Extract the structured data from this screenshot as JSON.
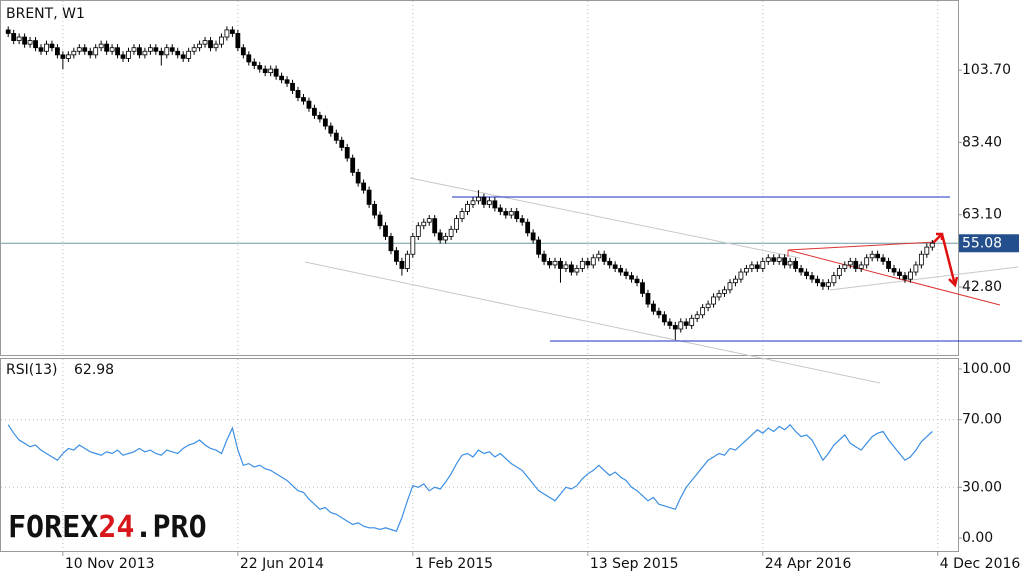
{
  "chart_data": [
    {
      "type": "candlestick",
      "title": "BRENT, W1",
      "values": [
        [
          115,
          116,
          113,
          114
        ],
        [
          114,
          115,
          111,
          112
        ],
        [
          112,
          114,
          111,
          113
        ],
        [
          113,
          114,
          110,
          111
        ],
        [
          111,
          113,
          110,
          112
        ],
        [
          112,
          113,
          109,
          110
        ],
        [
          110,
          111,
          108,
          109
        ],
        [
          109,
          112,
          108,
          111
        ],
        [
          111,
          112,
          109,
          110
        ],
        [
          110,
          111,
          107,
          108
        ],
        [
          108,
          109,
          104,
          107
        ],
        [
          107,
          109,
          106,
          108
        ],
        [
          108,
          110,
          107,
          109
        ],
        [
          109,
          111,
          108,
          110
        ],
        [
          110,
          111,
          108,
          109
        ],
        [
          109,
          110,
          107,
          108
        ],
        [
          108,
          111,
          107,
          110
        ],
        [
          110,
          112,
          109,
          111
        ],
        [
          111,
          112,
          108,
          109
        ],
        [
          109,
          111,
          108,
          110
        ],
        [
          110,
          111,
          107,
          108
        ],
        [
          108,
          109,
          106,
          107
        ],
        [
          107,
          110,
          106,
          109
        ],
        [
          109,
          111,
          108,
          110
        ],
        [
          110,
          111,
          107,
          108
        ],
        [
          108,
          110,
          107,
          109
        ],
        [
          109,
          111,
          108,
          110
        ],
        [
          110,
          111,
          108,
          109
        ],
        [
          109,
          110,
          105,
          108
        ],
        [
          108,
          111,
          107,
          110
        ],
        [
          110,
          111,
          108,
          109
        ],
        [
          109,
          110,
          107,
          108
        ],
        [
          108,
          109,
          106,
          107
        ],
        [
          107,
          110,
          106,
          109
        ],
        [
          109,
          111,
          108,
          110
        ],
        [
          110,
          112,
          109,
          111
        ],
        [
          111,
          113,
          110,
          112
        ],
        [
          112,
          113,
          109,
          110
        ],
        [
          110,
          112,
          109,
          111
        ],
        [
          111,
          114,
          110,
          113
        ],
        [
          113,
          116,
          112,
          115
        ],
        [
          115,
          116,
          113,
          114
        ],
        [
          114,
          115,
          109,
          110
        ],
        [
          110,
          111,
          107,
          108
        ],
        [
          108,
          109,
          105,
          106
        ],
        [
          106,
          107,
          104,
          105
        ],
        [
          105,
          106,
          103,
          104
        ],
        [
          104,
          105,
          102,
          103
        ],
        [
          103,
          105,
          102,
          104
        ],
        [
          104,
          105,
          101,
          102
        ],
        [
          102,
          103,
          100,
          101
        ],
        [
          101,
          102,
          99,
          100
        ],
        [
          100,
          101,
          97,
          98
        ],
        [
          98,
          99,
          95,
          96
        ],
        [
          96,
          97,
          94,
          95
        ],
        [
          95,
          96,
          92,
          93
        ],
        [
          93,
          94,
          90,
          91
        ],
        [
          91,
          92,
          89,
          90
        ],
        [
          90,
          91,
          87,
          88
        ],
        [
          88,
          89,
          85,
          86
        ],
        [
          86,
          87,
          83,
          84
        ],
        [
          84,
          85,
          81,
          82
        ],
        [
          82,
          83,
          78,
          79
        ],
        [
          79,
          80,
          74,
          75
        ],
        [
          75,
          76,
          71,
          72
        ],
        [
          72,
          73,
          69,
          70
        ],
        [
          70,
          71,
          65,
          66
        ],
        [
          66,
          67,
          62,
          63
        ],
        [
          63,
          64,
          59,
          60
        ],
        [
          60,
          61,
          56,
          57
        ],
        [
          57,
          58,
          52,
          53
        ],
        [
          53,
          54,
          49,
          50
        ],
        [
          50,
          51,
          46,
          48
        ],
        [
          48,
          53,
          47,
          52
        ],
        [
          52,
          58,
          51,
          57
        ],
        [
          57,
          61,
          56,
          60
        ],
        [
          60,
          62,
          59,
          61
        ],
        [
          61,
          63,
          60,
          62
        ],
        [
          62,
          63,
          57,
          58
        ],
        [
          58,
          59,
          55,
          56
        ],
        [
          56,
          58,
          55,
          57
        ],
        [
          57,
          60,
          56,
          59
        ],
        [
          59,
          63,
          58,
          62
        ],
        [
          62,
          65,
          61,
          64
        ],
        [
          64,
          67,
          63,
          66
        ],
        [
          66,
          68,
          65,
          67
        ],
        [
          67,
          70,
          66,
          68
        ],
        [
          68,
          69,
          65,
          66
        ],
        [
          66,
          68,
          65,
          67
        ],
        [
          67,
          68,
          64,
          65
        ],
        [
          65,
          66,
          63,
          64
        ],
        [
          64,
          65,
          62,
          63
        ],
        [
          63,
          65,
          62,
          64
        ],
        [
          64,
          65,
          61,
          62
        ],
        [
          62,
          63,
          60,
          61
        ],
        [
          61,
          62,
          57,
          58
        ],
        [
          58,
          59,
          55,
          56
        ],
        [
          56,
          57,
          51,
          52
        ],
        [
          52,
          53,
          49,
          50
        ],
        [
          50,
          51,
          48,
          49
        ],
        [
          49,
          51,
          48,
          50
        ],
        [
          50,
          51,
          44,
          48
        ],
        [
          48,
          50,
          47,
          49
        ],
        [
          49,
          50,
          46,
          47
        ],
        [
          47,
          49,
          46,
          48
        ],
        [
          48,
          51,
          47,
          50
        ],
        [
          50,
          51,
          48,
          49
        ],
        [
          49,
          52,
          48,
          51
        ],
        [
          51,
          53,
          50,
          52
        ],
        [
          52,
          53,
          49,
          50
        ],
        [
          50,
          51,
          48,
          49
        ],
        [
          49,
          50,
          47,
          48
        ],
        [
          48,
          49,
          46,
          47
        ],
        [
          47,
          48,
          45,
          46
        ],
        [
          46,
          47,
          44,
          45
        ],
        [
          45,
          46,
          43,
          44
        ],
        [
          44,
          45,
          40,
          41
        ],
        [
          41,
          42,
          37,
          38
        ],
        [
          38,
          39,
          35,
          36
        ],
        [
          36,
          37,
          34,
          35
        ],
        [
          35,
          36,
          32,
          33
        ],
        [
          33,
          34,
          31,
          32
        ],
        [
          32,
          33,
          28,
          31
        ],
        [
          31,
          34,
          30,
          33
        ],
        [
          33,
          34,
          31,
          32
        ],
        [
          32,
          35,
          31,
          34
        ],
        [
          34,
          36,
          33,
          35
        ],
        [
          35,
          38,
          34,
          37
        ],
        [
          37,
          39,
          36,
          38
        ],
        [
          38,
          41,
          37,
          40
        ],
        [
          40,
          42,
          39,
          41
        ],
        [
          41,
          43,
          40,
          42
        ],
        [
          42,
          45,
          41,
          44
        ],
        [
          44,
          46,
          43,
          45
        ],
        [
          45,
          48,
          44,
          47
        ],
        [
          47,
          49,
          46,
          48
        ],
        [
          48,
          50,
          47,
          49
        ],
        [
          49,
          50,
          47,
          48
        ],
        [
          48,
          51,
          47,
          50
        ],
        [
          50,
          52,
          49,
          51
        ],
        [
          51,
          52,
          49,
          50
        ],
        [
          50,
          52,
          49,
          51
        ],
        [
          51,
          52,
          48,
          49
        ],
        [
          49,
          51,
          48,
          50
        ],
        [
          50,
          51,
          47,
          48
        ],
        [
          48,
          49,
          46,
          47
        ],
        [
          47,
          48,
          45,
          46
        ],
        [
          46,
          47,
          44,
          45
        ],
        [
          45,
          46,
          43,
          44
        ],
        [
          44,
          45,
          42,
          43
        ],
        [
          43,
          45,
          42,
          44
        ],
        [
          44,
          47,
          43,
          46
        ],
        [
          46,
          49,
          45,
          48
        ],
        [
          48,
          50,
          47,
          49
        ],
        [
          49,
          51,
          48,
          50
        ],
        [
          50,
          51,
          47,
          48
        ],
        [
          48,
          50,
          47,
          49
        ],
        [
          49,
          52,
          48,
          51
        ],
        [
          51,
          53,
          50,
          52
        ],
        [
          52,
          53,
          50,
          51
        ],
        [
          51,
          52,
          49,
          50
        ],
        [
          50,
          51,
          47,
          48
        ],
        [
          48,
          49,
          46,
          47
        ],
        [
          47,
          48,
          45,
          46
        ],
        [
          46,
          47,
          44,
          45
        ],
        [
          45,
          48,
          44,
          47
        ],
        [
          47,
          50,
          46,
          49
        ],
        [
          49,
          53,
          48,
          52
        ],
        [
          52,
          55,
          51,
          54
        ],
        [
          54,
          56,
          53,
          55.08
        ]
      ],
      "current_price": 55.08,
      "ylim": [
        23.7,
        123.4
      ],
      "yticks": [
        {
          "value": 103.7,
          "label": "103.70"
        },
        {
          "value": 83.4,
          "label": "83.40"
        },
        {
          "value": 63.1,
          "label": "63.10"
        },
        {
          "value": 42.8,
          "label": "42.80"
        }
      ],
      "xlim": [
        -1.5,
        173.7
      ],
      "xticks": [
        {
          "value": 10,
          "label": "10 Nov 2013"
        },
        {
          "value": 42,
          "label": "22 Jun 2014"
        },
        {
          "value": 74,
          "label": "1 Feb 2015"
        },
        {
          "value": 106,
          "label": "13 Sep 2015"
        },
        {
          "value": 138,
          "label": "24 Apr 2016"
        },
        {
          "value": 170,
          "label": "4 Dec 2016"
        }
      ],
      "grid": true
    },
    {
      "type": "line",
      "title": "RSI(13)",
      "color": "#3b8fe4",
      "values": [
        67,
        62,
        58,
        56,
        54,
        55,
        52,
        50,
        48,
        46,
        50,
        53,
        52,
        55,
        53,
        51,
        50,
        49,
        51,
        50,
        52,
        49,
        50,
        51,
        53,
        51,
        52,
        50,
        49,
        52,
        51,
        50,
        53,
        55,
        56,
        58,
        55,
        53,
        52,
        50,
        58,
        65,
        52,
        43,
        44,
        42,
        43,
        41,
        40,
        38,
        36,
        34,
        31,
        28,
        27,
        23,
        20,
        17,
        18,
        15,
        14,
        12,
        10,
        8,
        9,
        7,
        6,
        6,
        5,
        6,
        5,
        4,
        12,
        22,
        31,
        30,
        32,
        28,
        30,
        29,
        33,
        38,
        44,
        49,
        50,
        48,
        52,
        50,
        51,
        48,
        50,
        47,
        44,
        42,
        40,
        36,
        32,
        28,
        26,
        24,
        22,
        26,
        30,
        29,
        31,
        35,
        38,
        40,
        43,
        40,
        37,
        39,
        36,
        34,
        30,
        28,
        25,
        22,
        24,
        20,
        19,
        18,
        17,
        24,
        30,
        34,
        38,
        42,
        46,
        48,
        50,
        49,
        53,
        52,
        55,
        58,
        61,
        64,
        62,
        65,
        63,
        66,
        64,
        67,
        63,
        60,
        61,
        58,
        52,
        46,
        50,
        55,
        58,
        61,
        56,
        54,
        52,
        56,
        60,
        62,
        63,
        58,
        54,
        50,
        46,
        48,
        52,
        57,
        60,
        62.98
      ],
      "ylim": [
        -7.7,
        106.5
      ],
      "yticks": [
        {
          "value": 100,
          "label": "100.00"
        },
        {
          "value": 70,
          "label": "70.00"
        },
        {
          "value": 30,
          "label": "30.00"
        },
        {
          "value": 0,
          "label": "0.00"
        }
      ],
      "levels": [
        70,
        30
      ]
    }
  ],
  "watermark": [
    "FOREX",
    "24",
    ".PRO"
  ]
}
